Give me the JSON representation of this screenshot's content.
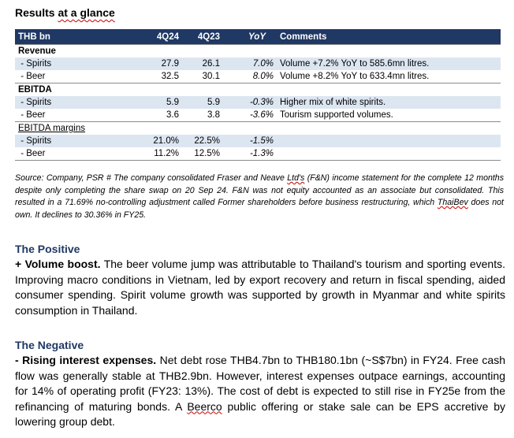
{
  "title_prefix": "Results ",
  "title_suffix": "at a glance",
  "table": {
    "headers": [
      "THB bn",
      "4Q24",
      "4Q23",
      "YoY",
      "Comments"
    ],
    "revenue_label": "Revenue",
    "revenue_rows": [
      {
        "label": " - Spirits",
        "q24": "27.9",
        "q23": "26.1",
        "yoy": "7.0%",
        "comment": "Volume +7.2% YoY to 585.6mn litres."
      },
      {
        "label": " - Beer",
        "q24": "32.5",
        "q23": "30.1",
        "yoy": "8.0%",
        "comment": "Volume +8.2% YoY to 633.4mn litres."
      }
    ],
    "ebitda_label": "EBITDA",
    "ebitda_rows": [
      {
        "label": " - Spirits",
        "q24": "5.9",
        "q23": "5.9",
        "yoy": "-0.3%",
        "comment": "Higher mix of white spirits."
      },
      {
        "label": " - Beer",
        "q24": "3.6",
        "q23": "3.8",
        "yoy": "-3.6%",
        "comment": "Tourism supported volumes."
      }
    ],
    "margins_label": "EBITDA margins",
    "margin_rows": [
      {
        "label": " - Spirits",
        "q24": "21.0%",
        "q23": "22.5%",
        "yoy": "-1.5%",
        "comment": ""
      },
      {
        "label": " - Beer",
        "q24": "11.2%",
        "q23": "12.5%",
        "yoy": "-1.3%",
        "comment": ""
      }
    ]
  },
  "source": {
    "part1": "Source: Company, PSR # The company consolidated Fraser and Neave ",
    "ltds": "Ltd's",
    "part2": " (F&N) income statement for the complete 12 months despite only completing the share swap on 20 Sep 24. F&N was not equity accounted as an associate but consolidated. This resulted in a 71.69% no-controlling adjustment called Former shareholders before business restructuring, which ",
    "thaibev": "ThaiBev",
    "part3": " does not own. It declines to 30.36% in FY25."
  },
  "positive": {
    "heading": "The Positive",
    "bold": "+ Volume boost.",
    "text": " The beer volume jump was attributable to Thailand's tourism and sporting events. Improving macro conditions in Vietnam, led by export recovery and return in fiscal spending, aided consumer spending. Spirit volume growth was supported by growth in Myanmar and white spirits consumption in Thailand."
  },
  "negative": {
    "heading": "The Negative",
    "bold": "- Rising interest expenses.",
    "text1": " Net debt rose THB4.7bn to THB180.1bn (~S$7bn) in FY24. Free cash flow was generally stable at THB2.9bn. However, interest expenses outpace earnings, accounting for 14% of operating profit (FY23: 13%). The cost of debt is expected to still rise in FY25e from the refinancing of maturing bonds. A ",
    "beerco": "Beerco",
    "text2": " public offering or stake sale can be EPS accretive by lowering group debt."
  }
}
